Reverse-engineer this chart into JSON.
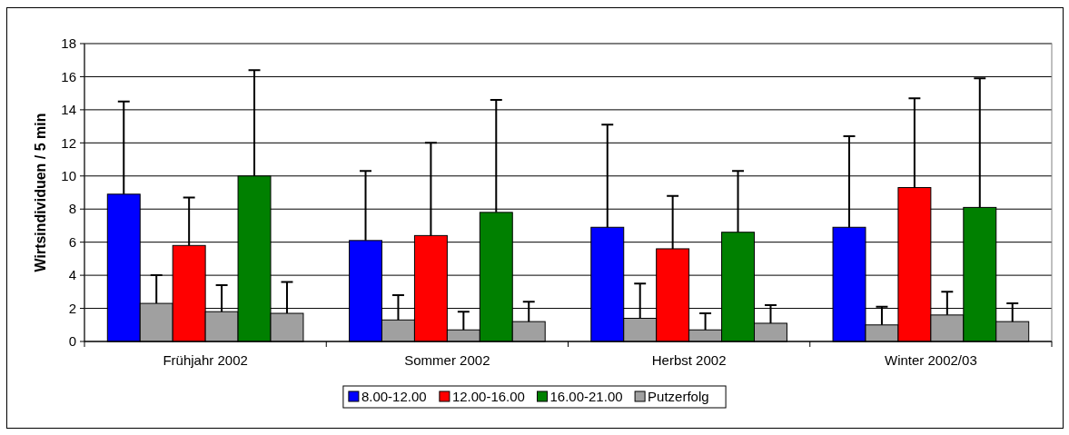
{
  "chart_data": {
    "type": "bar",
    "ylabel": "Wirtsindividuen / 5 min",
    "categories": [
      "Frühjahr 2002",
      "Sommer 2002",
      "Herbst 2002",
      "Winter 2002/03"
    ],
    "series": [
      {
        "name": "8.00-12.00",
        "color": "#0000ff",
        "values": [
          8.9,
          6.1,
          6.9,
          6.9
        ],
        "errors": [
          [
            8.9,
            14.5
          ],
          [
            6.1,
            10.3
          ],
          [
            6.9,
            13.1
          ],
          [
            6.9,
            12.4
          ]
        ]
      },
      {
        "color": "#a0a0a0",
        "values": [
          2.3,
          1.3,
          1.4,
          1.0
        ],
        "errors": [
          [
            2.3,
            4.0
          ],
          [
            1.3,
            2.8
          ],
          [
            1.4,
            3.5
          ],
          [
            1.0,
            2.1
          ]
        ]
      },
      {
        "name": "12.00-16.00",
        "color": "#ff0000",
        "values": [
          5.8,
          6.4,
          5.6,
          9.3
        ],
        "errors": [
          [
            5.8,
            8.7
          ],
          [
            6.4,
            12.0
          ],
          [
            5.6,
            8.8
          ],
          [
            9.3,
            14.7
          ]
        ]
      },
      {
        "color": "#a0a0a0",
        "values": [
          1.8,
          0.7,
          0.7,
          1.6
        ],
        "errors": [
          [
            1.8,
            3.4
          ],
          [
            0.7,
            1.8
          ],
          [
            0.7,
            1.7
          ],
          [
            1.6,
            3.0
          ]
        ]
      },
      {
        "name": "16.00-21.00",
        "color": "#008000",
        "values": [
          10.0,
          7.8,
          6.6,
          8.1
        ],
        "errors": [
          [
            10.0,
            16.4
          ],
          [
            7.8,
            14.6
          ],
          [
            6.6,
            10.3
          ],
          [
            8.1,
            15.9
          ]
        ]
      },
      {
        "name": "Putzerfolg",
        "color": "#a0a0a0",
        "values": [
          1.7,
          1.2,
          1.1,
          1.2
        ],
        "errors": [
          [
            1.7,
            3.6
          ],
          [
            1.2,
            2.4
          ],
          [
            1.1,
            2.2
          ],
          [
            1.2,
            2.3
          ]
        ]
      }
    ],
    "ylim": [
      0,
      18
    ],
    "yticks": [
      0,
      2,
      4,
      6,
      8,
      10,
      12,
      14,
      16,
      18
    ],
    "grid": "y",
    "legend": "bottom"
  }
}
